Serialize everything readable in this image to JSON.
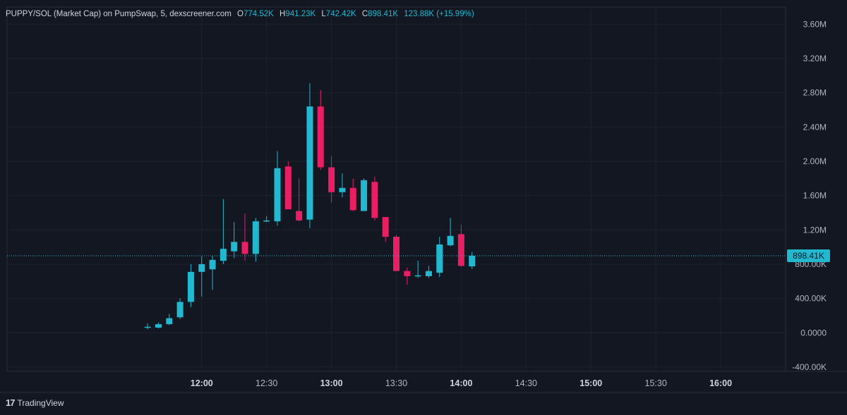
{
  "legend": {
    "title": "PUPPY/SOL (Market Cap) on PumpSwap, 5, dexscreener.com",
    "o_label": "O",
    "o_value": "774.52K",
    "h_label": "H",
    "h_value": "941.23K",
    "l_label": "L",
    "l_value": "742.42K",
    "c_label": "C",
    "c_value": "898.41K",
    "change": "123.88K (+15.99%)"
  },
  "footer": {
    "brand": "TradingView",
    "logo_glyph": "17"
  },
  "colors": {
    "background": "#131722",
    "up": "#22b8cf",
    "down": "#e91e63",
    "grid": "#1e222d",
    "text": "#b2b5be",
    "price_tag": "#22b8cf"
  },
  "chart_data": {
    "type": "candlestick",
    "title": "PUPPY/SOL (Market Cap) on PumpSwap, 5, dexscreener.com",
    "interval_minutes": 5,
    "x_ticks": [
      "12:00",
      "12:30",
      "13:00",
      "13:30",
      "14:00",
      "14:30",
      "15:00",
      "15:30",
      "16:00"
    ],
    "y_ticks": [
      "3.60M",
      "3.20M",
      "2.80M",
      "2.40M",
      "2.00M",
      "1.60M",
      "1.20M",
      "800.00K",
      "400.00K",
      "0.0000",
      "-400.00K"
    ],
    "y_tick_values": [
      3600000,
      3200000,
      2800000,
      2400000,
      2000000,
      1600000,
      1200000,
      800000,
      400000,
      0,
      -400000
    ],
    "ylim": [
      -450000,
      3800000
    ],
    "xlim": [
      "10:30",
      "16:30"
    ],
    "last_price": 898410,
    "last_price_label": "898.41K",
    "grid": true,
    "candles": [
      {
        "t": "11:35",
        "o": 60000,
        "h": 110000,
        "l": 40000,
        "c": 70000
      },
      {
        "t": "11:40",
        "o": 60000,
        "h": 120000,
        "l": 50000,
        "c": 100000
      },
      {
        "t": "11:45",
        "o": 100000,
        "h": 220000,
        "l": 90000,
        "c": 170000
      },
      {
        "t": "11:50",
        "o": 180000,
        "h": 400000,
        "l": 160000,
        "c": 360000
      },
      {
        "t": "11:55",
        "o": 360000,
        "h": 800000,
        "l": 300000,
        "c": 710000
      },
      {
        "t": "12:00",
        "o": 710000,
        "h": 890000,
        "l": 420000,
        "c": 800000
      },
      {
        "t": "12:05",
        "o": 740000,
        "h": 900000,
        "l": 500000,
        "c": 850000
      },
      {
        "t": "12:10",
        "o": 840000,
        "h": 1560000,
        "l": 800000,
        "c": 980000
      },
      {
        "t": "12:15",
        "o": 950000,
        "h": 1290000,
        "l": 870000,
        "c": 1060000
      },
      {
        "t": "12:20",
        "o": 1060000,
        "h": 1390000,
        "l": 840000,
        "c": 920000
      },
      {
        "t": "12:25",
        "o": 920000,
        "h": 1340000,
        "l": 830000,
        "c": 1300000
      },
      {
        "t": "12:30",
        "o": 1300000,
        "h": 1360000,
        "l": 1290000,
        "c": 1310000
      },
      {
        "t": "12:35",
        "o": 1300000,
        "h": 2120000,
        "l": 1250000,
        "c": 1920000
      },
      {
        "t": "12:40",
        "o": 1940000,
        "h": 2000000,
        "l": 1440000,
        "c": 1440000
      },
      {
        "t": "12:45",
        "o": 1420000,
        "h": 1800000,
        "l": 1300000,
        "c": 1310000
      },
      {
        "t": "12:50",
        "o": 1320000,
        "h": 2910000,
        "l": 1220000,
        "c": 2640000
      },
      {
        "t": "12:55",
        "o": 2640000,
        "h": 2830000,
        "l": 1900000,
        "c": 1930000
      },
      {
        "t": "13:00",
        "o": 1930000,
        "h": 2060000,
        "l": 1520000,
        "c": 1640000
      },
      {
        "t": "13:05",
        "o": 1640000,
        "h": 1860000,
        "l": 1580000,
        "c": 1690000
      },
      {
        "t": "13:10",
        "o": 1690000,
        "h": 1800000,
        "l": 1420000,
        "c": 1430000
      },
      {
        "t": "13:15",
        "o": 1420000,
        "h": 1800000,
        "l": 1420000,
        "c": 1780000
      },
      {
        "t": "13:20",
        "o": 1760000,
        "h": 1820000,
        "l": 1310000,
        "c": 1340000
      },
      {
        "t": "13:25",
        "o": 1350000,
        "h": 1350000,
        "l": 1060000,
        "c": 1120000
      },
      {
        "t": "13:30",
        "o": 1120000,
        "h": 1140000,
        "l": 720000,
        "c": 720000
      },
      {
        "t": "13:35",
        "o": 720000,
        "h": 760000,
        "l": 560000,
        "c": 660000
      },
      {
        "t": "13:40",
        "o": 660000,
        "h": 840000,
        "l": 640000,
        "c": 670000
      },
      {
        "t": "13:45",
        "o": 660000,
        "h": 780000,
        "l": 640000,
        "c": 720000
      },
      {
        "t": "13:50",
        "o": 700000,
        "h": 1120000,
        "l": 650000,
        "c": 1030000
      },
      {
        "t": "13:55",
        "o": 1020000,
        "h": 1340000,
        "l": 1010000,
        "c": 1130000
      },
      {
        "t": "14:00",
        "o": 1150000,
        "h": 1260000,
        "l": 770000,
        "c": 780000
      },
      {
        "t": "14:05",
        "o": 774520,
        "h": 941230,
        "l": 742420,
        "c": 898410
      }
    ]
  }
}
